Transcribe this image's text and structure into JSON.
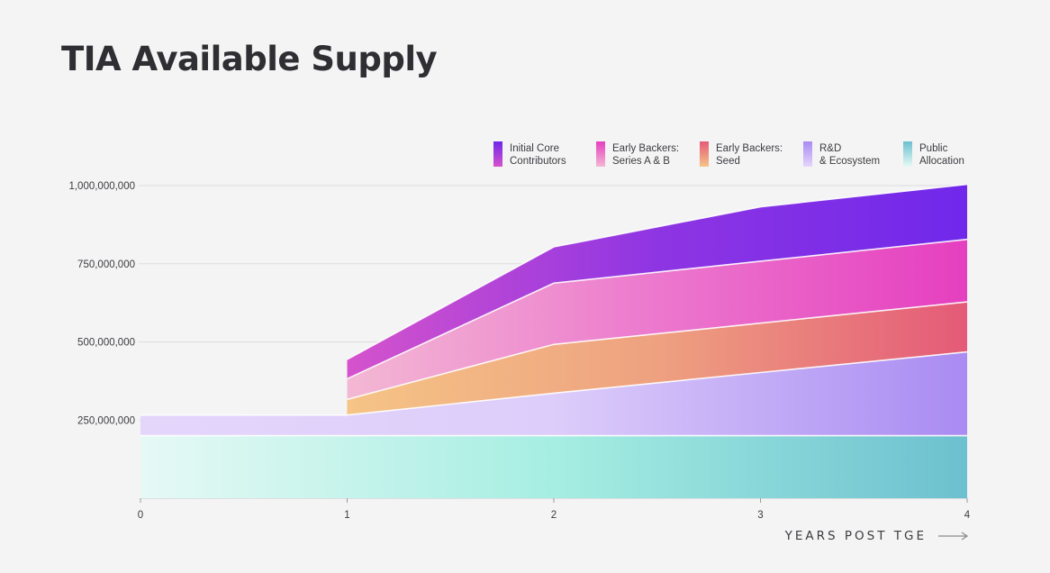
{
  "title": "TIA Available Supply",
  "chart_data": {
    "type": "area",
    "title": "TIA Available Supply",
    "xlabel": "YEARS POST TGE",
    "ylabel": "",
    "x": [
      0,
      1,
      2,
      3,
      4
    ],
    "xlim": [
      0,
      4
    ],
    "ylim": [
      0,
      1000000000
    ],
    "y_ticks": [
      "250,000,000",
      "500,000,000",
      "750,000,000",
      "1,000,000,000"
    ],
    "x_ticks": [
      "0",
      "1",
      "2",
      "3",
      "4"
    ],
    "stacked": true,
    "grid": true,
    "legend_position": "top-right",
    "series": [
      {
        "name": "Public Allocation",
        "legend_lines": [
          "Public",
          "Allocation"
        ],
        "colors": [
          "#e6f9f5",
          "#a6eee2",
          "#6cc0cf"
        ],
        "points": [
          [
            0,
            200000000
          ],
          [
            1,
            200000000
          ],
          [
            2,
            200000000
          ],
          [
            3,
            200000000
          ],
          [
            4,
            200000000
          ]
        ]
      },
      {
        "name": "R&D & Ecosystem",
        "legend_lines": [
          "R&D",
          "& Ecosystem"
        ],
        "colors": [
          "#e4d6fb",
          "#dccdfa",
          "#a98bf2"
        ],
        "points": [
          [
            0,
            66000000
          ],
          [
            1,
            66000000
          ],
          [
            2,
            136000000
          ],
          [
            3,
            202000000
          ],
          [
            4,
            268000000
          ]
        ]
      },
      {
        "name": "Early Backers: Seed",
        "legend_lines": [
          "Early Backers:",
          "Seed"
        ],
        "colors": [
          "#f5c486",
          "#eea180",
          "#e45a78"
        ],
        "points": [
          [
            1,
            50000000
          ],
          [
            2,
            156000000
          ],
          [
            3,
            158000000
          ],
          [
            4,
            160000000
          ]
        ]
      },
      {
        "name": "Early Backers: Series A & B",
        "legend_lines": [
          "Early Backers:",
          "Series A & B"
        ],
        "colors": [
          "#f3b8d3",
          "#ec78cd",
          "#e53fbf"
        ],
        "points": [
          [
            1,
            66000000
          ],
          [
            2,
            196000000
          ],
          [
            3,
            198000000
          ],
          [
            4,
            200000000
          ]
        ]
      },
      {
        "name": "Initial Core Contributors",
        "legend_lines": [
          "Initial Core",
          "Contributors"
        ],
        "colors": [
          "#d553cc",
          "#8e35e3",
          "#7028ea"
        ],
        "points": [
          [
            1,
            62000000
          ],
          [
            2,
            116000000
          ],
          [
            3,
            174000000
          ],
          [
            4,
            176000000
          ]
        ]
      }
    ]
  }
}
